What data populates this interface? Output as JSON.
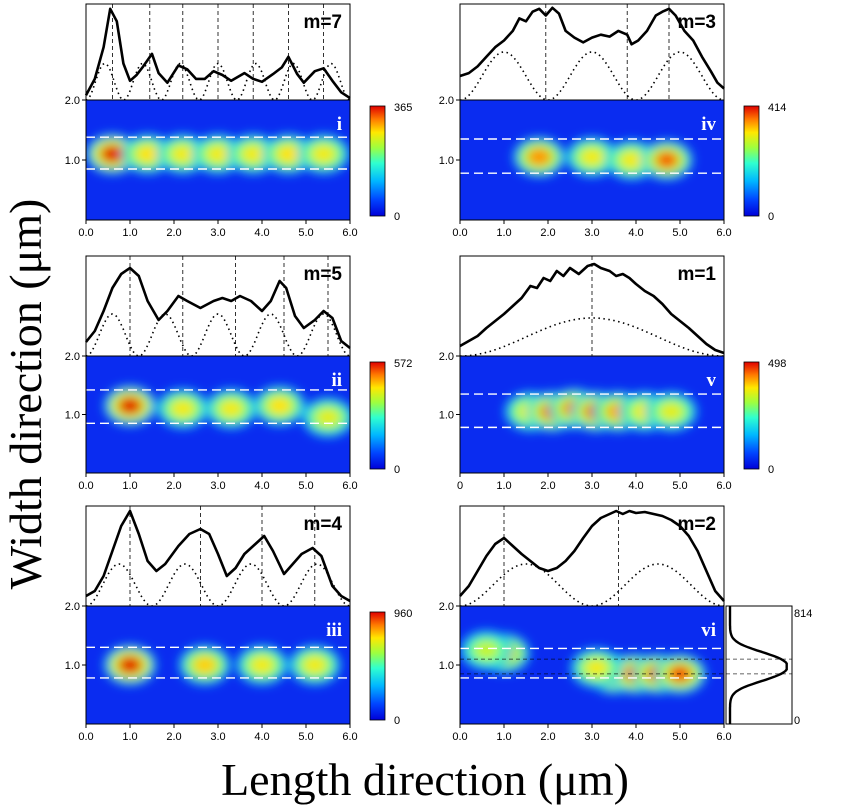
{
  "figure": {
    "ylabel": "Width direction (μm)",
    "xlabel": "Length direction (μm)"
  },
  "chart_data": [
    {
      "type": "heatmap",
      "panel": "i",
      "mode_label": "m=7",
      "colorbar_max_label": "365",
      "colorbar_min_label": "0",
      "x_ticks": [
        "0.0",
        "1.0",
        "2.0",
        "3.0",
        "4.0",
        "5.0",
        "6.0"
      ],
      "y_ticks": [
        "2.0",
        "1.0"
      ],
      "xlim": [
        0,
        6
      ],
      "ylim": [
        0,
        2
      ],
      "dashed_y": [
        0.85,
        1.38
      ],
      "hotspots": [
        [
          0.6,
          1.1,
          1.0
        ],
        [
          1.4,
          1.1,
          0.5
        ],
        [
          2.2,
          1.1,
          0.45
        ],
        [
          3.0,
          1.1,
          0.45
        ],
        [
          3.8,
          1.1,
          0.45
        ],
        [
          4.6,
          1.1,
          0.5
        ],
        [
          5.4,
          1.1,
          0.45
        ]
      ],
      "profile_measured": [
        [
          0,
          0.05
        ],
        [
          0.2,
          0.22
        ],
        [
          0.4,
          0.55
        ],
        [
          0.55,
          0.95
        ],
        [
          0.7,
          0.82
        ],
        [
          0.85,
          0.38
        ],
        [
          1.0,
          0.2
        ],
        [
          1.15,
          0.26
        ],
        [
          1.3,
          0.35
        ],
        [
          1.5,
          0.48
        ],
        [
          1.65,
          0.28
        ],
        [
          1.85,
          0.18
        ],
        [
          2.1,
          0.36
        ],
        [
          2.3,
          0.32
        ],
        [
          2.5,
          0.22
        ],
        [
          2.7,
          0.22
        ],
        [
          2.9,
          0.3
        ],
        [
          3.1,
          0.26
        ],
        [
          3.3,
          0.2
        ],
        [
          3.6,
          0.28
        ],
        [
          3.8,
          0.22
        ],
        [
          4.0,
          0.19
        ],
        [
          4.25,
          0.27
        ],
        [
          4.45,
          0.34
        ],
        [
          4.6,
          0.45
        ],
        [
          4.8,
          0.27
        ],
        [
          4.95,
          0.18
        ],
        [
          5.2,
          0.3
        ],
        [
          5.4,
          0.33
        ],
        [
          5.6,
          0.2
        ],
        [
          5.8,
          0.08
        ],
        [
          6,
          0.02
        ]
      ],
      "profile_fit_modes": 7,
      "profile_fit_amp": 0.38,
      "nodes": [
        0.6,
        1.45,
        2.2,
        3.0,
        3.8,
        4.6,
        5.4
      ]
    },
    {
      "type": "heatmap",
      "panel": "ii",
      "mode_label": "m=5",
      "colorbar_max_label": "572",
      "colorbar_min_label": "0",
      "x_ticks": [
        "0.0",
        "1.0",
        "2.0",
        "3.0",
        "4.0",
        "5.0",
        "6.0"
      ],
      "y_ticks": [
        "2.0",
        "1.0"
      ],
      "xlim": [
        0,
        6
      ],
      "ylim": [
        0,
        2
      ],
      "dashed_y": [
        0.85,
        1.42
      ],
      "hotspots": [
        [
          1.0,
          1.15,
          1.0
        ],
        [
          2.2,
          1.1,
          0.45
        ],
        [
          3.3,
          1.1,
          0.45
        ],
        [
          4.4,
          1.15,
          0.5
        ],
        [
          5.5,
          0.95,
          0.4
        ]
      ],
      "profile_measured": [
        [
          0,
          0.14
        ],
        [
          0.2,
          0.25
        ],
        [
          0.4,
          0.45
        ],
        [
          0.6,
          0.68
        ],
        [
          0.8,
          0.82
        ],
        [
          1.0,
          0.88
        ],
        [
          1.2,
          0.8
        ],
        [
          1.4,
          0.55
        ],
        [
          1.65,
          0.36
        ],
        [
          1.85,
          0.45
        ],
        [
          2.1,
          0.6
        ],
        [
          2.3,
          0.55
        ],
        [
          2.6,
          0.48
        ],
        [
          2.9,
          0.55
        ],
        [
          3.1,
          0.58
        ],
        [
          3.3,
          0.55
        ],
        [
          3.5,
          0.6
        ],
        [
          3.75,
          0.55
        ],
        [
          4.0,
          0.45
        ],
        [
          4.2,
          0.55
        ],
        [
          4.4,
          0.75
        ],
        [
          4.55,
          0.68
        ],
        [
          4.75,
          0.4
        ],
        [
          4.95,
          0.28
        ],
        [
          5.2,
          0.36
        ],
        [
          5.4,
          0.45
        ],
        [
          5.6,
          0.38
        ],
        [
          5.8,
          0.15
        ],
        [
          6,
          0.08
        ]
      ],
      "profile_fit_modes": 5,
      "profile_fit_amp": 0.42,
      "nodes": [
        1.0,
        2.2,
        3.4,
        4.5,
        5.5
      ]
    },
    {
      "type": "heatmap",
      "panel": "iii",
      "mode_label": "m=4",
      "colorbar_max_label": "960",
      "colorbar_min_label": "0",
      "x_ticks": [
        "0.0",
        "1.0",
        "2.0",
        "3.0",
        "4.0",
        "5.0",
        "6.0"
      ],
      "y_ticks": [
        "2.0",
        "1.0"
      ],
      "xlim": [
        0,
        6
      ],
      "ylim": [
        0,
        2
      ],
      "dashed_y": [
        0.78,
        1.3
      ],
      "hotspots": [
        [
          1.0,
          1.0,
          1.0
        ],
        [
          2.7,
          1.0,
          0.55
        ],
        [
          4.0,
          1.0,
          0.45
        ],
        [
          5.2,
          1.0,
          0.45
        ]
      ],
      "profile_measured": [
        [
          0,
          0.1
        ],
        [
          0.2,
          0.15
        ],
        [
          0.4,
          0.3
        ],
        [
          0.6,
          0.55
        ],
        [
          0.8,
          0.8
        ],
        [
          1.0,
          0.95
        ],
        [
          1.2,
          0.72
        ],
        [
          1.4,
          0.45
        ],
        [
          1.6,
          0.35
        ],
        [
          1.8,
          0.42
        ],
        [
          2.1,
          0.6
        ],
        [
          2.35,
          0.72
        ],
        [
          2.6,
          0.77
        ],
        [
          2.8,
          0.72
        ],
        [
          3.0,
          0.52
        ],
        [
          3.2,
          0.3
        ],
        [
          3.4,
          0.38
        ],
        [
          3.6,
          0.52
        ],
        [
          3.85,
          0.62
        ],
        [
          4.05,
          0.7
        ],
        [
          4.25,
          0.55
        ],
        [
          4.5,
          0.32
        ],
        [
          4.7,
          0.42
        ],
        [
          4.9,
          0.52
        ],
        [
          5.15,
          0.58
        ],
        [
          5.35,
          0.5
        ],
        [
          5.6,
          0.2
        ],
        [
          5.8,
          0.1
        ],
        [
          6,
          0.05
        ]
      ],
      "profile_fit_modes": 4,
      "profile_fit_amp": 0.42,
      "nodes": [
        1.0,
        2.6,
        4.0,
        5.2
      ]
    },
    {
      "type": "heatmap",
      "panel": "iv",
      "mode_label": "m=3",
      "colorbar_max_label": "414",
      "colorbar_min_label": "0",
      "x_ticks": [
        "0.0",
        "1.0",
        "2.0",
        "3.0",
        "4.0",
        "5.0",
        "6.0"
      ],
      "y_ticks": [
        "2.0",
        "1.0"
      ],
      "xlim": [
        0,
        6
      ],
      "ylim": [
        0,
        2
      ],
      "dashed_y": [
        0.78,
        1.35
      ],
      "hotspots": [
        [
          1.8,
          1.05,
          0.7
        ],
        [
          3.0,
          1.05,
          0.45
        ],
        [
          3.9,
          1.0,
          0.45
        ],
        [
          4.7,
          1.0,
          0.75
        ]
      ],
      "profile_measured": [
        [
          0,
          0.25
        ],
        [
          0.2,
          0.28
        ],
        [
          0.4,
          0.35
        ],
        [
          0.6,
          0.45
        ],
        [
          0.8,
          0.55
        ],
        [
          1.0,
          0.62
        ],
        [
          1.2,
          0.72
        ],
        [
          1.35,
          0.85
        ],
        [
          1.5,
          0.82
        ],
        [
          1.65,
          0.92
        ],
        [
          1.8,
          0.95
        ],
        [
          1.95,
          0.88
        ],
        [
          2.1,
          0.96
        ],
        [
          2.25,
          0.9
        ],
        [
          2.4,
          0.72
        ],
        [
          2.6,
          0.65
        ],
        [
          2.8,
          0.6
        ],
        [
          3.0,
          0.65
        ],
        [
          3.2,
          0.68
        ],
        [
          3.4,
          0.66
        ],
        [
          3.6,
          0.72
        ],
        [
          3.8,
          0.68
        ],
        [
          3.9,
          0.58
        ],
        [
          4.05,
          0.62
        ],
        [
          4.25,
          0.72
        ],
        [
          4.45,
          0.88
        ],
        [
          4.6,
          0.92
        ],
        [
          4.75,
          0.95
        ],
        [
          4.9,
          0.88
        ],
        [
          5.1,
          0.72
        ],
        [
          5.3,
          0.62
        ],
        [
          5.5,
          0.45
        ],
        [
          5.7,
          0.3
        ],
        [
          5.85,
          0.18
        ],
        [
          6,
          0.12
        ]
      ],
      "profile_fit_modes": 3,
      "profile_fit_amp": 0.5,
      "nodes": [
        1.95,
        3.8,
        4.75
      ]
    },
    {
      "type": "heatmap",
      "panel": "v",
      "mode_label": "m=1",
      "colorbar_max_label": "498",
      "colorbar_min_label": "0",
      "x_ticks": [
        "0",
        "1.0",
        "2.0",
        "3.0",
        "4.0",
        "5.0",
        "6.0"
      ],
      "y_ticks": [
        "2.0",
        "1.0"
      ],
      "xlim": [
        0,
        6
      ],
      "ylim": [
        0,
        2
      ],
      "dashed_y": [
        0.78,
        1.35
      ],
      "hotspots": [
        [
          1.6,
          1.05,
          0.45
        ],
        [
          2.1,
          1.05,
          0.8
        ],
        [
          2.6,
          1.1,
          0.75
        ],
        [
          3.1,
          1.05,
          0.85
        ],
        [
          3.6,
          1.05,
          0.65
        ],
        [
          4.2,
          1.05,
          0.45
        ],
        [
          4.8,
          1.05,
          0.4
        ]
      ],
      "profile_measured": [
        [
          0,
          0.1
        ],
        [
          0.2,
          0.15
        ],
        [
          0.4,
          0.2
        ],
        [
          0.6,
          0.28
        ],
        [
          0.8,
          0.35
        ],
        [
          1.0,
          0.42
        ],
        [
          1.2,
          0.5
        ],
        [
          1.4,
          0.58
        ],
        [
          1.6,
          0.7
        ],
        [
          1.75,
          0.68
        ],
        [
          1.9,
          0.78
        ],
        [
          2.05,
          0.75
        ],
        [
          2.2,
          0.85
        ],
        [
          2.35,
          0.8
        ],
        [
          2.5,
          0.88
        ],
        [
          2.7,
          0.82
        ],
        [
          2.9,
          0.9
        ],
        [
          3.05,
          0.92
        ],
        [
          3.2,
          0.88
        ],
        [
          3.4,
          0.85
        ],
        [
          3.55,
          0.8
        ],
        [
          3.7,
          0.82
        ],
        [
          3.85,
          0.78
        ],
        [
          4.0,
          0.72
        ],
        [
          4.2,
          0.65
        ],
        [
          4.4,
          0.6
        ],
        [
          4.6,
          0.52
        ],
        [
          4.8,
          0.42
        ],
        [
          5.0,
          0.35
        ],
        [
          5.2,
          0.28
        ],
        [
          5.4,
          0.2
        ],
        [
          5.6,
          0.12
        ],
        [
          5.8,
          0.06
        ],
        [
          6,
          0.03
        ]
      ],
      "profile_fit_modes": 1,
      "profile_fit_amp": 0.38,
      "nodes": [
        3.0
      ]
    },
    {
      "type": "heatmap",
      "panel": "vi",
      "mode_label": "m=2",
      "colorbar_max_label": "814",
      "colorbar_min_label": "0",
      "x_ticks": [
        "0.0",
        "1.0",
        "2.0",
        "3.0",
        "4.0",
        "5.0",
        "6.0"
      ],
      "y_ticks": [
        "2.0",
        "1.0"
      ],
      "xlim": [
        0,
        6
      ],
      "ylim": [
        0,
        2
      ],
      "dashed_y": [
        0.78,
        1.28
      ],
      "hotspots": [
        [
          1.0,
          1.2,
          0.6
        ],
        [
          3.5,
          0.85,
          0.8
        ],
        [
          4.0,
          0.85,
          0.85
        ],
        [
          4.5,
          0.85,
          0.85
        ],
        [
          5.0,
          0.85,
          0.8
        ],
        [
          3.1,
          0.95,
          0.45
        ],
        [
          0.6,
          1.25,
          0.3
        ]
      ],
      "profile_measured": [
        [
          0,
          0.1
        ],
        [
          0.2,
          0.2
        ],
        [
          0.4,
          0.35
        ],
        [
          0.6,
          0.5
        ],
        [
          0.8,
          0.62
        ],
        [
          1.0,
          0.68
        ],
        [
          1.2,
          0.6
        ],
        [
          1.4,
          0.52
        ],
        [
          1.6,
          0.45
        ],
        [
          1.8,
          0.38
        ],
        [
          2.0,
          0.35
        ],
        [
          2.2,
          0.38
        ],
        [
          2.4,
          0.45
        ],
        [
          2.6,
          0.55
        ],
        [
          2.8,
          0.68
        ],
        [
          3.0,
          0.8
        ],
        [
          3.2,
          0.88
        ],
        [
          3.4,
          0.92
        ],
        [
          3.55,
          0.95
        ],
        [
          3.7,
          0.92
        ],
        [
          3.85,
          0.95
        ],
        [
          4.0,
          0.93
        ],
        [
          4.2,
          0.94
        ],
        [
          4.4,
          0.92
        ],
        [
          4.6,
          0.9
        ],
        [
          4.8,
          0.86
        ],
        [
          5.0,
          0.8
        ],
        [
          5.2,
          0.7
        ],
        [
          5.4,
          0.55
        ],
        [
          5.6,
          0.35
        ],
        [
          5.8,
          0.15
        ],
        [
          6,
          0.05
        ]
      ],
      "profile_fit_modes": 2,
      "profile_fit_amp": 0.42,
      "nodes": [
        1.0,
        3.6
      ],
      "side_profile_peaks": [
        0.85,
        1.1
      ]
    }
  ]
}
